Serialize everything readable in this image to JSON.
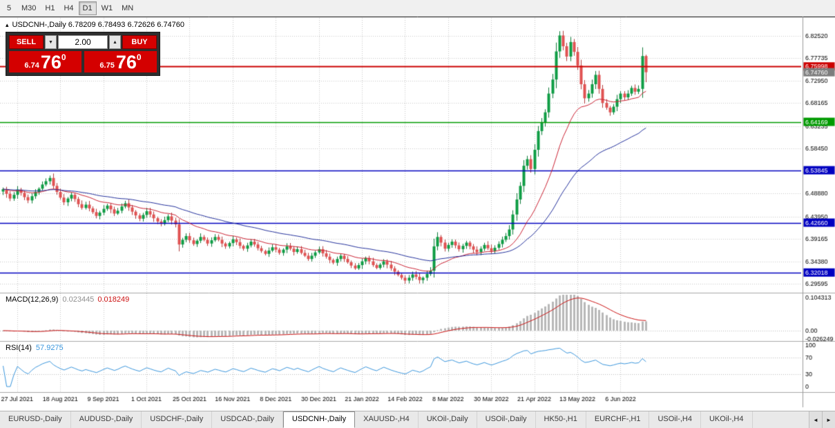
{
  "colors": {
    "accent_red": "#d40000",
    "panel_bg": "#2e2e2e"
  },
  "icons": {
    "chevron_down": "▼",
    "chevron_up": "▲",
    "scroll_left": "◄",
    "scroll_right": "►",
    "panel_toggle": "▴"
  },
  "toolbar": {
    "timeframes": [
      "5",
      "M30",
      "H1",
      "H4",
      "D1",
      "W1",
      "MN"
    ],
    "active": "D1"
  },
  "chart": {
    "header": "USDCNH-,Daily 6.78209 6.78493 6.72626 6.74760"
  },
  "trade_panel": {
    "sell_label": "SELL",
    "buy_label": "BUY",
    "volume": "2.00",
    "sell_price": {
      "small": "6.74",
      "big": "76",
      "sup": "0"
    },
    "buy_price": {
      "small": "6.75",
      "big": "76",
      "sup": "0"
    }
  },
  "chart_data": {
    "type": "candlestick",
    "symbol": "USDCNH-",
    "timeframe": "Daily",
    "ohlc_current": {
      "open": 6.78209,
      "high": 6.78493,
      "low": 6.72626,
      "close": 6.7476
    },
    "closes": [
      6.498,
      6.488,
      6.478,
      6.486,
      6.497,
      6.49,
      6.481,
      6.474,
      6.483,
      6.492,
      6.499,
      6.508,
      6.515,
      6.522,
      6.505,
      6.492,
      6.48,
      6.47,
      6.478,
      6.486,
      6.477,
      6.466,
      6.458,
      6.465,
      6.457,
      6.449,
      6.441,
      6.448,
      6.456,
      6.463,
      6.455,
      6.446,
      6.452,
      6.461,
      6.468,
      6.459,
      6.45,
      6.442,
      6.435,
      6.443,
      6.451,
      6.444,
      6.436,
      6.429,
      6.424,
      6.432,
      6.44,
      6.431,
      6.423,
      6.38,
      6.39,
      6.398,
      6.389,
      6.381,
      6.388,
      6.396,
      6.39,
      6.382,
      6.389,
      6.396,
      6.39,
      6.382,
      6.376,
      6.383,
      6.391,
      6.385,
      6.377,
      6.371,
      6.378,
      6.386,
      6.38,
      6.372,
      6.366,
      6.36,
      6.367,
      6.374,
      6.369,
      6.362,
      6.369,
      6.376,
      6.371,
      6.364,
      6.37,
      6.362,
      6.356,
      6.349,
      6.356,
      6.363,
      6.37,
      6.361,
      6.354,
      6.347,
      6.341,
      6.349,
      6.356,
      6.349,
      6.342,
      6.335,
      6.329,
      6.336,
      6.344,
      6.351,
      6.344,
      6.336,
      6.33,
      6.337,
      6.344,
      6.337,
      6.329,
      6.322,
      6.315,
      6.309,
      6.303,
      6.309,
      6.316,
      6.311,
      6.304,
      6.309,
      6.317,
      6.324,
      6.376,
      6.396,
      6.384,
      6.371,
      6.379,
      6.386,
      6.378,
      6.37,
      6.377,
      6.384,
      6.376,
      6.369,
      6.364,
      6.371,
      6.379,
      6.372,
      6.366,
      6.373,
      6.381,
      6.39,
      6.398,
      6.412,
      6.444,
      6.476,
      6.505,
      6.548,
      6.562,
      6.541,
      6.582,
      6.622,
      6.641,
      6.662,
      6.702,
      6.732,
      6.792,
      6.826,
      6.803,
      6.781,
      6.812,
      6.791,
      6.762,
      6.722,
      6.692,
      6.702,
      6.722,
      6.742,
      6.712,
      6.682,
      6.672,
      6.662,
      6.674,
      6.69,
      6.702,
      6.694,
      6.702,
      6.714,
      6.706,
      6.712,
      6.78209,
      6.7476
    ],
    "y_range": [
      6.283,
      6.8575
    ],
    "y_axis_labels": [
      "6.82520",
      "6.77735",
      "6.72950",
      "6.68165",
      "6.63235",
      "6.58450",
      "6.48880",
      "6.43950",
      "6.39165",
      "6.34380",
      "6.29595"
    ],
    "levels": [
      {
        "value": 6.75998,
        "label": "6.75998",
        "color": "#cc0000",
        "line": true
      },
      {
        "value": 6.7476,
        "label": "6.74760",
        "color": "#7d7d7d",
        "line": false,
        "current": true
      },
      {
        "value": 6.64169,
        "label": "6.64169",
        "color": "#009a00",
        "line": true
      },
      {
        "value": 6.53845,
        "label": "6.53845",
        "color": "#0000c0",
        "line": true
      },
      {
        "value": 6.4266,
        "label": "6.42660",
        "color": "#0000c0",
        "line": true
      },
      {
        "value": 6.32018,
        "label": "6.32018",
        "color": "#0000c0",
        "line": true
      }
    ],
    "moving_averages": [
      {
        "type": "ema",
        "period": 20,
        "color": "#cc2233"
      },
      {
        "type": "ema",
        "period": 50,
        "color": "#23309c"
      }
    ],
    "up_color": "#0f9d45",
    "down_color": "#e05252",
    "wick_up": "#0b7a36",
    "wick_down": "#b23b3b"
  },
  "macd": {
    "name": "MACD(12,26,9)",
    "macd_value": "0.023445",
    "signal_value": "0.018249",
    "fast": 12,
    "slow": 26,
    "signal": 9,
    "axis_labels": [
      "0.104313",
      "0.00",
      "-0.026249"
    ],
    "axis_max": 0.104313,
    "axis_min": -0.026249,
    "hist_color": "#b8b8b8",
    "signal_color": "#cc1111"
  },
  "rsi": {
    "name": "RSI(14)",
    "value": "57.9275",
    "period": 14,
    "axis_labels": [
      {
        "v": 100,
        "t": "100"
      },
      {
        "v": 70,
        "t": "70"
      },
      {
        "v": 30,
        "t": "30"
      },
      {
        "v": 0,
        "t": "0"
      }
    ],
    "levels": [
      70,
      30
    ],
    "color": "#3a96dd"
  },
  "x_axis": {
    "labels": [
      "27 Jul 2021",
      "18 Aug 2021",
      "9 Sep 2021",
      "1 Oct 2021",
      "25 Oct 2021",
      "16 Nov 2021",
      "8 Dec 2021",
      "30 Dec 2021",
      "21 Jan 2022",
      "14 Feb 2022",
      "8 Mar 2022",
      "30 Mar 2022",
      "21 Apr 2022",
      "13 May 2022",
      "6 Jun 2022"
    ],
    "first_bar": 4,
    "every": 12
  },
  "tabbar": {
    "active_index": 4,
    "tabs": [
      {
        "label": "EURUSD-,Daily"
      },
      {
        "label": "AUDUSD-,Daily"
      },
      {
        "label": "USDCHF-,Daily"
      },
      {
        "label": "USDCAD-,Daily"
      },
      {
        "label": "USDCNH-,Daily"
      },
      {
        "label": "XAUUSD-,H4"
      },
      {
        "label": "UKOil-,Daily"
      },
      {
        "label": "USOil-,Daily"
      },
      {
        "label": "HK50-,H1"
      },
      {
        "label": "EURCHF-,H1"
      },
      {
        "label": "USOil-,H4"
      },
      {
        "label": "UKOil-,H4"
      }
    ]
  }
}
